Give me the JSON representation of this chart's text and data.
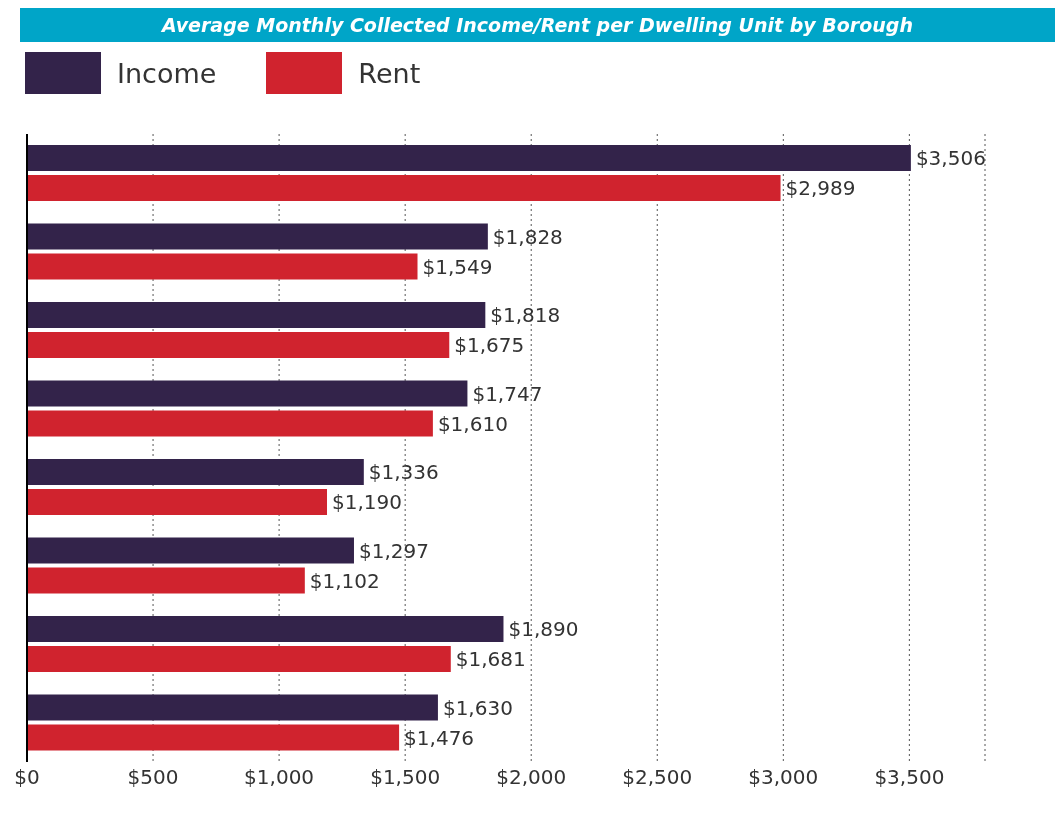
{
  "chart_data": {
    "type": "bar",
    "orientation": "horizontal",
    "title": "Average Monthly Collected Income/Rent per Dwelling Unit by Borough",
    "categories": [
      null,
      null,
      null,
      null,
      null,
      null,
      null,
      null
    ],
    "series": [
      {
        "name": "Income",
        "color": "#33234a",
        "values": [
          3506,
          1828,
          1818,
          1747,
          1336,
          1297,
          1890,
          1630
        ],
        "value_labels": [
          "$3,506",
          "$1,828",
          "$1,818",
          "$1,747",
          "$1,336",
          "$1,297",
          "$1,890",
          "$1,630"
        ]
      },
      {
        "name": "Rent",
        "color": "#d0232e",
        "values": [
          2989,
          1549,
          1675,
          1610,
          1190,
          1102,
          1681,
          1476
        ],
        "value_labels": [
          "$2,989",
          "$1,549",
          "$1,675",
          "$1,610",
          "$1,190",
          "$1,102",
          "$1,681",
          "$1,476"
        ]
      }
    ],
    "xlim": [
      0,
      3800
    ],
    "xticks": [
      {
        "value": 0,
        "label": "$0"
      },
      {
        "value": 500,
        "label": "$500"
      },
      {
        "value": 1000,
        "label": "$1,000"
      },
      {
        "value": 1500,
        "label": "$1,500"
      },
      {
        "value": 2000,
        "label": "$2,000"
      },
      {
        "value": 2500,
        "label": "$2,500"
      },
      {
        "value": 3000,
        "label": "$3,000"
      },
      {
        "value": 3500,
        "label": "$3,500"
      }
    ],
    "grid": "x",
    "legend": "top left",
    "tick_labels": "x",
    "line_style": "dotted"
  }
}
